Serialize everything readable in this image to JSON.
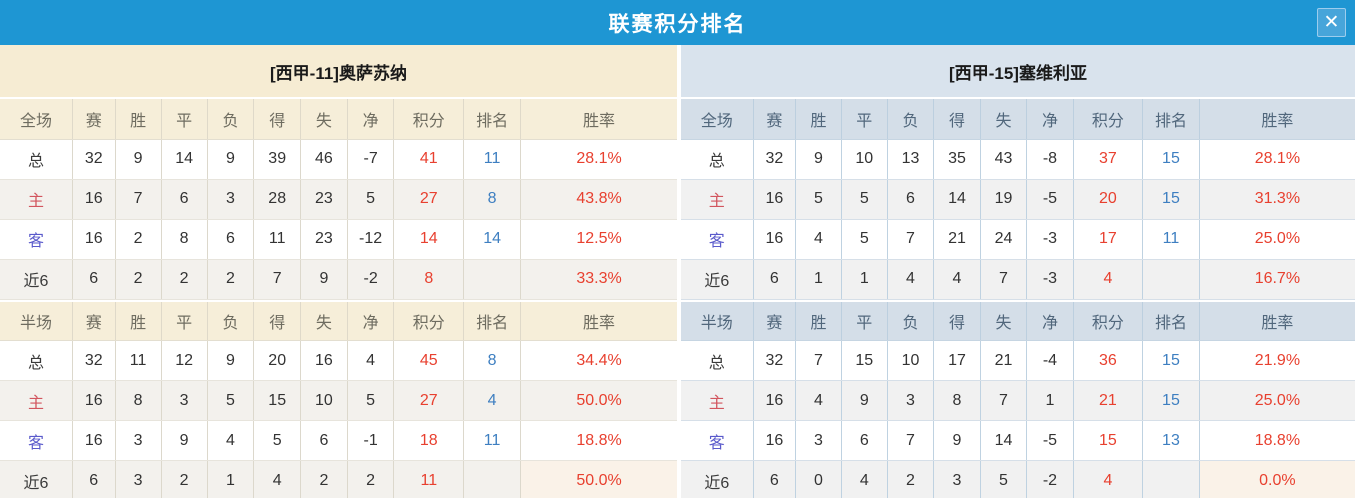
{
  "title_bar": {
    "title": "联赛积分排名",
    "close_glyph": "✕"
  },
  "columns_full": [
    "全场",
    "赛",
    "胜",
    "平",
    "负",
    "得",
    "失",
    "净",
    "积分",
    "排名",
    "胜率"
  ],
  "columns_half": [
    "半场",
    "赛",
    "胜",
    "平",
    "负",
    "得",
    "失",
    "净",
    "积分",
    "排名",
    "胜率"
  ],
  "panels": [
    {
      "team": "[西甲-11]奥萨苏纳",
      "full": {
        "rows": [
          {
            "label": "总",
            "type": "total",
            "values": [
              "32",
              "9",
              "14",
              "9",
              "39",
              "46",
              "-7"
            ],
            "points": "41",
            "rank": "11",
            "rate": "28.1%"
          },
          {
            "label": "主",
            "type": "home",
            "values": [
              "16",
              "7",
              "6",
              "3",
              "28",
              "23",
              "5"
            ],
            "points": "27",
            "rank": "8",
            "rate": "43.8%"
          },
          {
            "label": "客",
            "type": "away",
            "values": [
              "16",
              "2",
              "8",
              "6",
              "11",
              "23",
              "-12"
            ],
            "points": "14",
            "rank": "14",
            "rate": "12.5%"
          },
          {
            "label": "近6",
            "type": "recent",
            "values": [
              "6",
              "2",
              "2",
              "2",
              "7",
              "9",
              "-2"
            ],
            "points": "8",
            "rank": "",
            "rate": "33.3%"
          }
        ]
      },
      "half": {
        "rows": [
          {
            "label": "总",
            "type": "total",
            "values": [
              "32",
              "11",
              "12",
              "9",
              "20",
              "16",
              "4"
            ],
            "points": "45",
            "rank": "8",
            "rate": "34.4%"
          },
          {
            "label": "主",
            "type": "home",
            "values": [
              "16",
              "8",
              "3",
              "5",
              "15",
              "10",
              "5"
            ],
            "points": "27",
            "rank": "4",
            "rate": "50.0%"
          },
          {
            "label": "客",
            "type": "away",
            "values": [
              "16",
              "3",
              "9",
              "4",
              "5",
              "6",
              "-1"
            ],
            "points": "18",
            "rank": "11",
            "rate": "18.8%"
          },
          {
            "label": "近6",
            "type": "recent",
            "values": [
              "6",
              "3",
              "2",
              "1",
              "4",
              "2",
              "2"
            ],
            "points": "11",
            "rank": "",
            "rate": "50.0%"
          }
        ]
      }
    },
    {
      "team": "[西甲-15]塞维利亚",
      "full": {
        "rows": [
          {
            "label": "总",
            "type": "total",
            "values": [
              "32",
              "9",
              "10",
              "13",
              "35",
              "43",
              "-8"
            ],
            "points": "37",
            "rank": "15",
            "rate": "28.1%"
          },
          {
            "label": "主",
            "type": "home",
            "values": [
              "16",
              "5",
              "5",
              "6",
              "14",
              "19",
              "-5"
            ],
            "points": "20",
            "rank": "15",
            "rate": "31.3%"
          },
          {
            "label": "客",
            "type": "away",
            "values": [
              "16",
              "4",
              "5",
              "7",
              "21",
              "24",
              "-3"
            ],
            "points": "17",
            "rank": "11",
            "rate": "25.0%"
          },
          {
            "label": "近6",
            "type": "recent",
            "values": [
              "6",
              "1",
              "1",
              "4",
              "4",
              "7",
              "-3"
            ],
            "points": "4",
            "rank": "",
            "rate": "16.7%"
          }
        ]
      },
      "half": {
        "rows": [
          {
            "label": "总",
            "type": "total",
            "values": [
              "32",
              "7",
              "15",
              "10",
              "17",
              "21",
              "-4"
            ],
            "points": "36",
            "rank": "15",
            "rate": "21.9%"
          },
          {
            "label": "主",
            "type": "home",
            "values": [
              "16",
              "4",
              "9",
              "3",
              "8",
              "7",
              "1"
            ],
            "points": "21",
            "rank": "15",
            "rate": "25.0%"
          },
          {
            "label": "客",
            "type": "away",
            "values": [
              "16",
              "3",
              "6",
              "7",
              "9",
              "14",
              "-5"
            ],
            "points": "15",
            "rank": "13",
            "rate": "18.8%"
          },
          {
            "label": "近6",
            "type": "recent",
            "values": [
              "6",
              "0",
              "4",
              "2",
              "3",
              "5",
              "-2"
            ],
            "points": "4",
            "rank": "",
            "rate": "0.0%"
          }
        ]
      }
    }
  ],
  "colors": {
    "titlebar_blue": "#1E96D3",
    "close_button_blue": "#47A5DA",
    "left_theme_cream": "#F6ECD3",
    "right_theme_blue": "#D9E3ED",
    "points_red": "#E8402F",
    "rank_blue": "#3E7FC1",
    "home_label_red": "#D2555E",
    "away_label_blue": "#5A5ACB"
  }
}
